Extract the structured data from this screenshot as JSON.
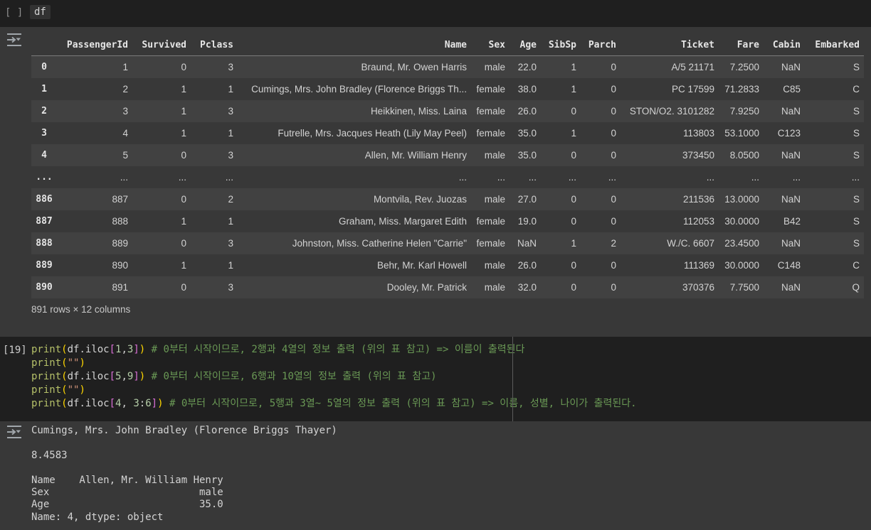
{
  "cell1": {
    "prompt": "[ ]",
    "code": "df"
  },
  "table": {
    "columns": [
      "",
      "PassengerId",
      "Survived",
      "Pclass",
      "Name",
      "Sex",
      "Age",
      "SibSp",
      "Parch",
      "Ticket",
      "Fare",
      "Cabin",
      "Embarked"
    ],
    "rows": [
      [
        "0",
        "1",
        "0",
        "3",
        "Braund, Mr. Owen Harris",
        "male",
        "22.0",
        "1",
        "0",
        "A/5 21171",
        "7.2500",
        "NaN",
        "S"
      ],
      [
        "1",
        "2",
        "1",
        "1",
        "Cumings, Mrs. John Bradley (Florence Briggs Th...",
        "female",
        "38.0",
        "1",
        "0",
        "PC 17599",
        "71.2833",
        "C85",
        "C"
      ],
      [
        "2",
        "3",
        "1",
        "3",
        "Heikkinen, Miss. Laina",
        "female",
        "26.0",
        "0",
        "0",
        "STON/O2. 3101282",
        "7.9250",
        "NaN",
        "S"
      ],
      [
        "3",
        "4",
        "1",
        "1",
        "Futrelle, Mrs. Jacques Heath (Lily May Peel)",
        "female",
        "35.0",
        "1",
        "0",
        "113803",
        "53.1000",
        "C123",
        "S"
      ],
      [
        "4",
        "5",
        "0",
        "3",
        "Allen, Mr. William Henry",
        "male",
        "35.0",
        "0",
        "0",
        "373450",
        "8.0500",
        "NaN",
        "S"
      ],
      [
        "...",
        "...",
        "...",
        "...",
        "...",
        "...",
        "...",
        "...",
        "...",
        "...",
        "...",
        "...",
        "..."
      ],
      [
        "886",
        "887",
        "0",
        "2",
        "Montvila, Rev. Juozas",
        "male",
        "27.0",
        "0",
        "0",
        "211536",
        "13.0000",
        "NaN",
        "S"
      ],
      [
        "887",
        "888",
        "1",
        "1",
        "Graham, Miss. Margaret Edith",
        "female",
        "19.0",
        "0",
        "0",
        "112053",
        "30.0000",
        "B42",
        "S"
      ],
      [
        "888",
        "889",
        "0",
        "3",
        "Johnston, Miss. Catherine Helen \"Carrie\"",
        "female",
        "NaN",
        "1",
        "2",
        "W./C. 6607",
        "23.4500",
        "NaN",
        "S"
      ],
      [
        "889",
        "890",
        "1",
        "1",
        "Behr, Mr. Karl Howell",
        "male",
        "26.0",
        "0",
        "0",
        "111369",
        "30.0000",
        "C148",
        "C"
      ],
      [
        "890",
        "891",
        "0",
        "3",
        "Dooley, Mr. Patrick",
        "male",
        "32.0",
        "0",
        "0",
        "370376",
        "7.7500",
        "NaN",
        "Q"
      ]
    ],
    "footer": "891 rows × 12 columns"
  },
  "cell2": {
    "prompt": "[19]",
    "lines": [
      [
        [
          "fn",
          "print"
        ],
        [
          "br1",
          "("
        ],
        [
          "pl",
          "df.iloc"
        ],
        [
          "br2",
          "["
        ],
        [
          "num",
          "1"
        ],
        [
          "pl",
          ","
        ],
        [
          "num",
          "3"
        ],
        [
          "br2",
          "]"
        ],
        [
          "br1",
          ")"
        ],
        [
          "pl",
          " "
        ],
        [
          "com",
          "# 0부터 시작이므로, 2행과 4열의 정보 출력 (위의 표 참고) => 이름이 출력된다"
        ]
      ],
      [
        [
          "fn",
          "print"
        ],
        [
          "br1",
          "("
        ],
        [
          "str",
          "\"\""
        ],
        [
          "br1",
          ")"
        ]
      ],
      [
        [
          "fn",
          "print"
        ],
        [
          "br1",
          "("
        ],
        [
          "pl",
          "df.iloc"
        ],
        [
          "br2",
          "["
        ],
        [
          "num",
          "5"
        ],
        [
          "pl",
          ","
        ],
        [
          "num",
          "9"
        ],
        [
          "br2",
          "]"
        ],
        [
          "br1",
          ")"
        ],
        [
          "pl",
          " "
        ],
        [
          "com",
          "# 0부터 시작이므로, 6행과 10열의 정보 출력 (위의 표 참고)"
        ]
      ],
      [
        [
          "fn",
          "print"
        ],
        [
          "br1",
          "("
        ],
        [
          "str",
          "\"\""
        ],
        [
          "br1",
          ")"
        ]
      ],
      [
        [
          "fn",
          "print"
        ],
        [
          "br1",
          "("
        ],
        [
          "pl",
          "df.iloc"
        ],
        [
          "br2",
          "["
        ],
        [
          "num",
          "4"
        ],
        [
          "pl",
          ", "
        ],
        [
          "num",
          "3"
        ],
        [
          "pl",
          ":"
        ],
        [
          "num",
          "6"
        ],
        [
          "br2",
          "]"
        ],
        [
          "br1",
          ")"
        ],
        [
          "pl",
          " "
        ],
        [
          "com",
          "# 0부터 시작이므로, 5행과 3열~ 5열의 정보 출력 (위의 표 참고) => 이름, 성별, 나이가 출력된다."
        ]
      ]
    ]
  },
  "output2": {
    "lines": [
      "Cumings, Mrs. John Bradley (Florence Briggs Thayer)",
      "",
      "8.4583",
      "",
      "Name    Allen, Mr. William Henry",
      "Sex                         male",
      "Age                         35.0",
      "Name: 4, dtype: object"
    ]
  },
  "colors": {
    "page_bg": "#383838",
    "code_cell_bg": "#1f1f1f",
    "row_stripe": "#414141",
    "syntax_function": "#b5c069",
    "syntax_bracket_gold": "#ffd700",
    "syntax_bracket_orchid": "#da70d6",
    "syntax_number": "#b5cea8",
    "syntax_string": "#ce9178",
    "syntax_comment": "#6a9955",
    "icon_gray": "#a0a6ab"
  }
}
